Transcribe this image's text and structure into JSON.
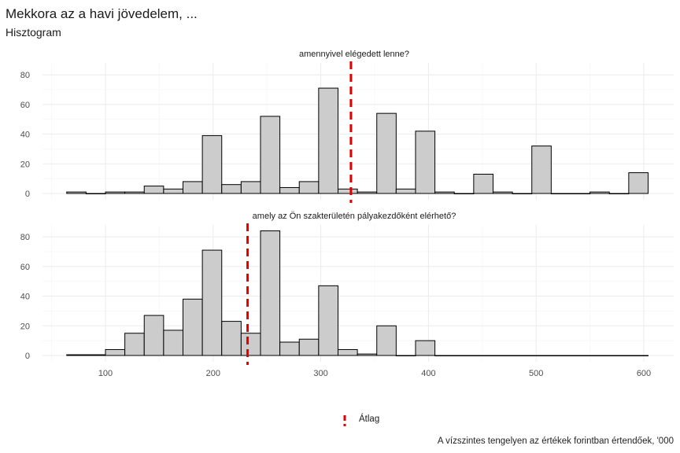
{
  "title": "Mekkora az a havi jövedelem, ...",
  "subtitle": "Hisztogram",
  "caption": "A vízszintes tengelyen az értékek forintban értendőek, '000",
  "legend": {
    "label": "Átlag",
    "color": "#e00000"
  },
  "chart_data": {
    "type": "bar",
    "x_ticks": [
      100,
      200,
      300,
      400,
      500,
      600
    ],
    "xlim": [
      50,
      610
    ],
    "y_ticks": [
      0,
      20,
      40,
      60,
      80
    ],
    "ylim": [
      0,
      88
    ],
    "bin_width": 18,
    "bar_color": "#cccccc",
    "panels": [
      {
        "label": "amennyivel elégedett lenne?",
        "mean": 328,
        "bins": [
          {
            "x0": 64,
            "count": 1
          },
          {
            "x0": 82,
            "count": 0
          },
          {
            "x0": 100,
            "count": 1
          },
          {
            "x0": 118,
            "count": 1
          },
          {
            "x0": 136,
            "count": 5
          },
          {
            "x0": 154,
            "count": 3
          },
          {
            "x0": 172,
            "count": 8
          },
          {
            "x0": 190,
            "count": 39
          },
          {
            "x0": 208,
            "count": 6
          },
          {
            "x0": 226,
            "count": 8
          },
          {
            "x0": 244,
            "count": 52
          },
          {
            "x0": 262,
            "count": 4
          },
          {
            "x0": 280,
            "count": 8
          },
          {
            "x0": 298,
            "count": 71
          },
          {
            "x0": 316,
            "count": 3
          },
          {
            "x0": 334,
            "count": 1
          },
          {
            "x0": 352,
            "count": 54
          },
          {
            "x0": 370,
            "count": 3
          },
          {
            "x0": 388,
            "count": 42
          },
          {
            "x0": 406,
            "count": 1
          },
          {
            "x0": 424,
            "count": 0
          },
          {
            "x0": 442,
            "count": 13
          },
          {
            "x0": 460,
            "count": 1
          },
          {
            "x0": 478,
            "count": 0
          },
          {
            "x0": 496,
            "count": 32
          },
          {
            "x0": 514,
            "count": 0
          },
          {
            "x0": 532,
            "count": 0
          },
          {
            "x0": 550,
            "count": 1
          },
          {
            "x0": 568,
            "count": 0
          },
          {
            "x0": 586,
            "count": 14
          }
        ]
      },
      {
        "label": "amely az Ön szakterületén pályakezdőként elérhető?",
        "mean": 232,
        "bins": [
          {
            "x0": 64,
            "count": 0.5
          },
          {
            "x0": 82,
            "count": 0.5
          },
          {
            "x0": 100,
            "count": 4
          },
          {
            "x0": 118,
            "count": 15
          },
          {
            "x0": 136,
            "count": 27
          },
          {
            "x0": 154,
            "count": 17
          },
          {
            "x0": 172,
            "count": 38
          },
          {
            "x0": 190,
            "count": 71
          },
          {
            "x0": 208,
            "count": 23
          },
          {
            "x0": 226,
            "count": 15
          },
          {
            "x0": 244,
            "count": 84
          },
          {
            "x0": 262,
            "count": 9
          },
          {
            "x0": 280,
            "count": 11
          },
          {
            "x0": 298,
            "count": 47
          },
          {
            "x0": 316,
            "count": 4
          },
          {
            "x0": 334,
            "count": 1
          },
          {
            "x0": 352,
            "count": 20
          },
          {
            "x0": 370,
            "count": 0
          },
          {
            "x0": 388,
            "count": 10
          },
          {
            "x0": 406,
            "count": 0
          },
          {
            "x0": 424,
            "count": 0
          },
          {
            "x0": 442,
            "count": 0
          },
          {
            "x0": 460,
            "count": 0
          },
          {
            "x0": 478,
            "count": 0
          },
          {
            "x0": 496,
            "count": 0
          },
          {
            "x0": 514,
            "count": 0
          },
          {
            "x0": 532,
            "count": 0
          },
          {
            "x0": 550,
            "count": 0
          },
          {
            "x0": 568,
            "count": 0
          },
          {
            "x0": 586,
            "count": 0
          }
        ]
      }
    ]
  }
}
